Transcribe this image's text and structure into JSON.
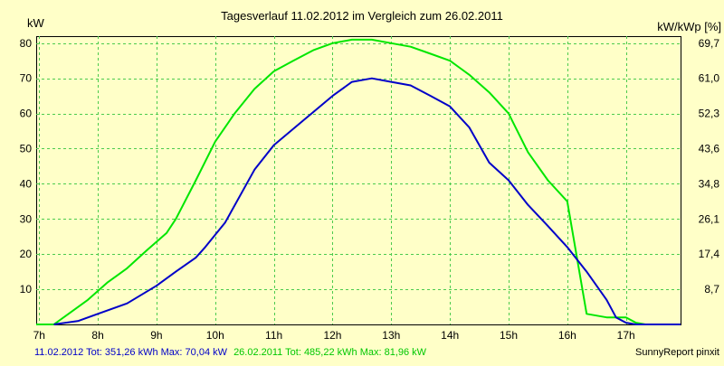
{
  "chart_data": {
    "type": "line",
    "title": "Tagesverlauf 11.02.2012 im Vergleich zum 26.02.2011",
    "ylabel_left": "kW",
    "ylabel_right": "kW/kWp [%]",
    "xlim": [
      6.95,
      17.93
    ],
    "ylim": [
      0,
      82
    ],
    "x_ticks": [
      {
        "v": 7,
        "label": "7h"
      },
      {
        "v": 8,
        "label": "8h"
      },
      {
        "v": 9,
        "label": "9h"
      },
      {
        "v": 10,
        "label": "10h"
      },
      {
        "v": 11,
        "label": "11h"
      },
      {
        "v": 12,
        "label": "12h"
      },
      {
        "v": 13,
        "label": "13h"
      },
      {
        "v": 14,
        "label": "14h"
      },
      {
        "v": 15,
        "label": "15h"
      },
      {
        "v": 16,
        "label": "16h"
      },
      {
        "v": 17,
        "label": "17h"
      }
    ],
    "y_ticks_left": [
      {
        "v": 10,
        "label": "10"
      },
      {
        "v": 20,
        "label": "20"
      },
      {
        "v": 30,
        "label": "30"
      },
      {
        "v": 40,
        "label": "40"
      },
      {
        "v": 50,
        "label": "50"
      },
      {
        "v": 60,
        "label": "60"
      },
      {
        "v": 70,
        "label": "70"
      },
      {
        "v": 80,
        "label": "80"
      }
    ],
    "y_ticks_right": [
      {
        "v": 10,
        "label": "8,7"
      },
      {
        "v": 20,
        "label": "17,4"
      },
      {
        "v": 30,
        "label": "26,1"
      },
      {
        "v": 40,
        "label": "34,8"
      },
      {
        "v": 50,
        "label": "43,6"
      },
      {
        "v": 60,
        "label": "52,3"
      },
      {
        "v": 70,
        "label": "61,0"
      },
      {
        "v": 80,
        "label": "69,7"
      }
    ],
    "grid": true,
    "series": [
      {
        "name": "11.02.2012",
        "color": "#0000C8",
        "points": [
          [
            7.25,
            0
          ],
          [
            7.67,
            1
          ],
          [
            8.0,
            3
          ],
          [
            8.5,
            6
          ],
          [
            9.0,
            11
          ],
          [
            9.33,
            15
          ],
          [
            9.67,
            19
          ],
          [
            9.83,
            22
          ],
          [
            10.17,
            29
          ],
          [
            10.67,
            44
          ],
          [
            11.0,
            51
          ],
          [
            11.5,
            58
          ],
          [
            12.0,
            65
          ],
          [
            12.33,
            69
          ],
          [
            12.67,
            70
          ],
          [
            13.0,
            69
          ],
          [
            13.33,
            68
          ],
          [
            13.67,
            65
          ],
          [
            14.0,
            62
          ],
          [
            14.33,
            56
          ],
          [
            14.67,
            46
          ],
          [
            15.0,
            41
          ],
          [
            15.33,
            34
          ],
          [
            15.67,
            28
          ],
          [
            16.0,
            22
          ],
          [
            16.33,
            15
          ],
          [
            16.67,
            7
          ],
          [
            16.83,
            2
          ],
          [
            17.0,
            0.5
          ],
          [
            17.17,
            0
          ],
          [
            17.93,
            0
          ]
        ]
      },
      {
        "name": "26.02.2011",
        "color": "#00E600",
        "points": [
          [
            6.95,
            0
          ],
          [
            7.25,
            0
          ],
          [
            7.5,
            3
          ],
          [
            7.83,
            7
          ],
          [
            8.17,
            12
          ],
          [
            8.5,
            16
          ],
          [
            8.83,
            21
          ],
          [
            9.17,
            26
          ],
          [
            9.33,
            30
          ],
          [
            9.67,
            41
          ],
          [
            10.0,
            52
          ],
          [
            10.33,
            60
          ],
          [
            10.67,
            67
          ],
          [
            11.0,
            72
          ],
          [
            11.33,
            75
          ],
          [
            11.67,
            78
          ],
          [
            12.0,
            80
          ],
          [
            12.33,
            81
          ],
          [
            12.67,
            81
          ],
          [
            13.0,
            80
          ],
          [
            13.33,
            79
          ],
          [
            13.67,
            77
          ],
          [
            14.0,
            75
          ],
          [
            14.33,
            71
          ],
          [
            14.67,
            66
          ],
          [
            15.0,
            60
          ],
          [
            15.33,
            49
          ],
          [
            15.67,
            41
          ],
          [
            16.0,
            35
          ],
          [
            16.33,
            3
          ],
          [
            16.67,
            2
          ],
          [
            17.0,
            2
          ],
          [
            17.17,
            0.5
          ],
          [
            17.33,
            0
          ],
          [
            17.93,
            0
          ]
        ]
      }
    ],
    "footer": {
      "series1_text": "11.02.2012 Tot: 351,26 kWh Max: 70,04 kW",
      "series2_text": "26.02.2011 Tot: 485,22 kWh Max: 81,96 kW",
      "credit": "SunnyReport pinxit"
    }
  }
}
